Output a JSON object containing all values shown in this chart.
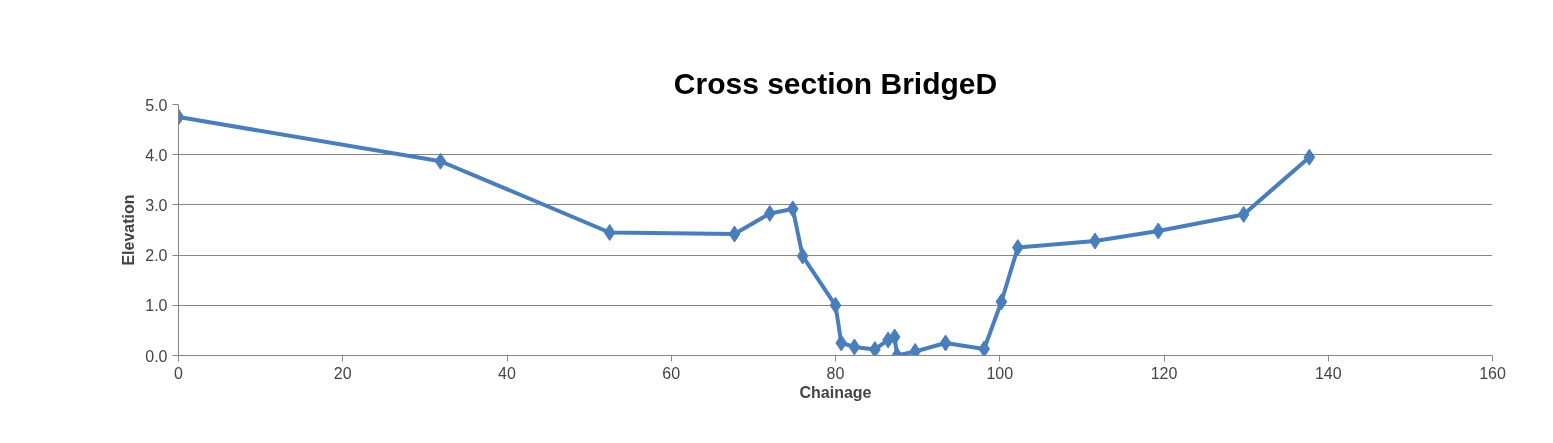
{
  "chart_data": {
    "type": "line",
    "title": "Cross section BridgeD",
    "xlabel": "Chainage",
    "ylabel": "Elevation",
    "x": [
      0,
      31.9,
      52.5,
      67.7,
      72.0,
      74.8,
      76.0,
      80.0,
      80.7,
      82.3,
      84.8,
      86.4,
      87.2,
      87.5,
      89.7,
      93.4,
      98.1,
      100.2,
      102.2,
      111.6,
      119.3,
      129.7,
      137.7
    ],
    "series": [
      {
        "color": "#4a7ebb",
        "values": [
          4.75,
          3.87,
          2.45,
          2.42,
          2.83,
          2.92,
          1.98,
          1.0,
          0.25,
          0.17,
          0.12,
          0.31,
          0.37,
          0.0,
          0.08,
          0.25,
          0.13,
          1.07,
          2.15,
          2.28,
          2.48,
          2.81,
          3.95
        ]
      }
    ],
    "xlim": [
      0,
      160
    ],
    "xticks": [
      0,
      20,
      40,
      60,
      80,
      100,
      120,
      140,
      160
    ],
    "ylim": [
      0,
      5
    ],
    "yticks": [
      {
        "value": 0,
        "label": "0.0"
      },
      {
        "value": 1,
        "label": "1.0"
      },
      {
        "value": 2,
        "label": "2.0"
      },
      {
        "value": 3,
        "label": "3.0"
      },
      {
        "value": 4,
        "label": "4.0"
      },
      {
        "value": 5,
        "label": "5.0"
      }
    ],
    "grid": "y",
    "marker": "diamond",
    "line_style": "solid"
  }
}
